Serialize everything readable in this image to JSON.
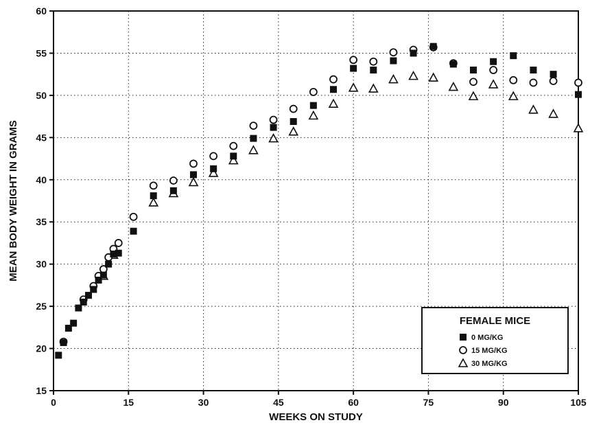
{
  "chart_data": {
    "type": "scatter",
    "xlabel": "WEEKS ON STUDY",
    "ylabel": "MEAN BODY WEIGHT IN GRAMS",
    "xlim": [
      0,
      105
    ],
    "ylim": [
      15,
      60
    ],
    "xticks": [
      0,
      15,
      30,
      45,
      60,
      75,
      90,
      105
    ],
    "yticks": [
      15,
      20,
      25,
      30,
      35,
      40,
      45,
      50,
      55,
      60
    ],
    "grid": true,
    "grid_style": "dotted",
    "legend": {
      "title": "FEMALE MICE",
      "placement": "bottom-right"
    },
    "series": [
      {
        "name": "0 MG/KG",
        "marker": "filled-square",
        "color": "#111111",
        "points": [
          [
            1,
            19.2
          ],
          [
            2,
            20.7
          ],
          [
            3,
            22.4
          ],
          [
            4,
            23.0
          ],
          [
            5,
            24.8
          ],
          [
            6,
            25.5
          ],
          [
            7,
            26.3
          ],
          [
            8,
            27.0
          ],
          [
            9,
            28.1
          ],
          [
            10,
            28.7
          ],
          [
            11,
            30.0
          ],
          [
            12,
            31.2
          ],
          [
            13,
            31.3
          ],
          [
            16,
            33.9
          ],
          [
            20,
            38.1
          ],
          [
            24,
            38.7
          ],
          [
            28,
            40.6
          ],
          [
            32,
            41.3
          ],
          [
            36,
            42.8
          ],
          [
            40,
            44.9
          ],
          [
            44,
            46.2
          ],
          [
            48,
            46.9
          ],
          [
            52,
            48.8
          ],
          [
            56,
            50.7
          ],
          [
            60,
            53.2
          ],
          [
            64,
            53.0
          ],
          [
            68,
            54.1
          ],
          [
            72,
            55.0
          ],
          [
            76,
            55.8
          ],
          [
            80,
            53.7
          ],
          [
            84,
            53.0
          ],
          [
            88,
            54.0
          ],
          [
            92,
            54.7
          ],
          [
            96,
            53.0
          ],
          [
            100,
            52.5
          ],
          [
            105,
            50.1
          ]
        ]
      },
      {
        "name": "15 MG/KG",
        "marker": "open-circle",
        "color": "#111111",
        "points": [
          [
            2,
            20.8
          ],
          [
            6,
            25.8
          ],
          [
            8,
            27.4
          ],
          [
            9,
            28.6
          ],
          [
            10,
            29.4
          ],
          [
            11,
            30.8
          ],
          [
            12,
            31.8
          ],
          [
            13,
            32.5
          ],
          [
            16,
            35.6
          ],
          [
            20,
            39.3
          ],
          [
            24,
            39.9
          ],
          [
            28,
            41.9
          ],
          [
            32,
            42.8
          ],
          [
            36,
            44.0
          ],
          [
            40,
            46.4
          ],
          [
            44,
            47.1
          ],
          [
            48,
            48.4
          ],
          [
            52,
            50.4
          ],
          [
            56,
            51.9
          ],
          [
            60,
            54.2
          ],
          [
            64,
            54.0
          ],
          [
            68,
            55.1
          ],
          [
            72,
            55.4
          ],
          [
            76,
            55.7
          ],
          [
            80,
            53.8
          ],
          [
            84,
            51.6
          ],
          [
            88,
            53.0
          ],
          [
            92,
            51.8
          ],
          [
            96,
            51.5
          ],
          [
            100,
            51.7
          ],
          [
            105,
            51.5
          ]
        ]
      },
      {
        "name": "30 MG/KG",
        "marker": "open-triangle",
        "color": "#111111",
        "points": [
          [
            10,
            28.6
          ],
          [
            12,
            31.1
          ],
          [
            20,
            37.3
          ],
          [
            24,
            38.4
          ],
          [
            28,
            39.7
          ],
          [
            32,
            40.8
          ],
          [
            36,
            42.3
          ],
          [
            40,
            43.5
          ],
          [
            44,
            44.9
          ],
          [
            48,
            45.7
          ],
          [
            52,
            47.6
          ],
          [
            56,
            49.0
          ],
          [
            60,
            50.9
          ],
          [
            64,
            50.8
          ],
          [
            68,
            51.9
          ],
          [
            72,
            52.3
          ],
          [
            76,
            52.1
          ],
          [
            80,
            51.0
          ],
          [
            84,
            49.9
          ],
          [
            88,
            51.3
          ],
          [
            92,
            49.9
          ],
          [
            96,
            48.3
          ],
          [
            100,
            47.8
          ],
          [
            105,
            46.1
          ]
        ]
      }
    ]
  }
}
